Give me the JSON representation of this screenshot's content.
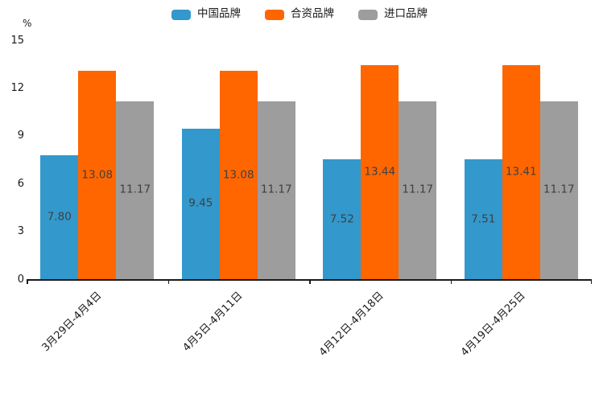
{
  "chart_data": {
    "type": "bar",
    "title": "",
    "ylabel": "%",
    "xlabel": "",
    "ylim": [
      0,
      15
    ],
    "yticks": [
      0,
      3,
      6,
      9,
      12,
      15
    ],
    "grid": false,
    "legend_position": "top",
    "value_labels": true,
    "value_label_decimals": 2,
    "categories": [
      "3月29日-4月4日",
      "4月5日-4月11日",
      "4月12日-4月18日",
      "4月19日-4月25日"
    ],
    "series": [
      {
        "name": "中国品牌",
        "color": "#3398CC",
        "values": [
          7.8,
          9.45,
          7.52,
          7.51
        ]
      },
      {
        "name": "合资品牌",
        "color": "#FF6600",
        "values": [
          13.08,
          13.08,
          13.44,
          13.41
        ]
      },
      {
        "name": "进口品牌",
        "color": "#9D9D9D",
        "values": [
          11.17,
          11.17,
          11.17,
          11.17
        ]
      }
    ]
  },
  "colors": {
    "axis": "#1a1a1a",
    "value_label_text": "#404040",
    "tick_label_text": "#1a1a1a",
    "background": "#ffffff"
  }
}
